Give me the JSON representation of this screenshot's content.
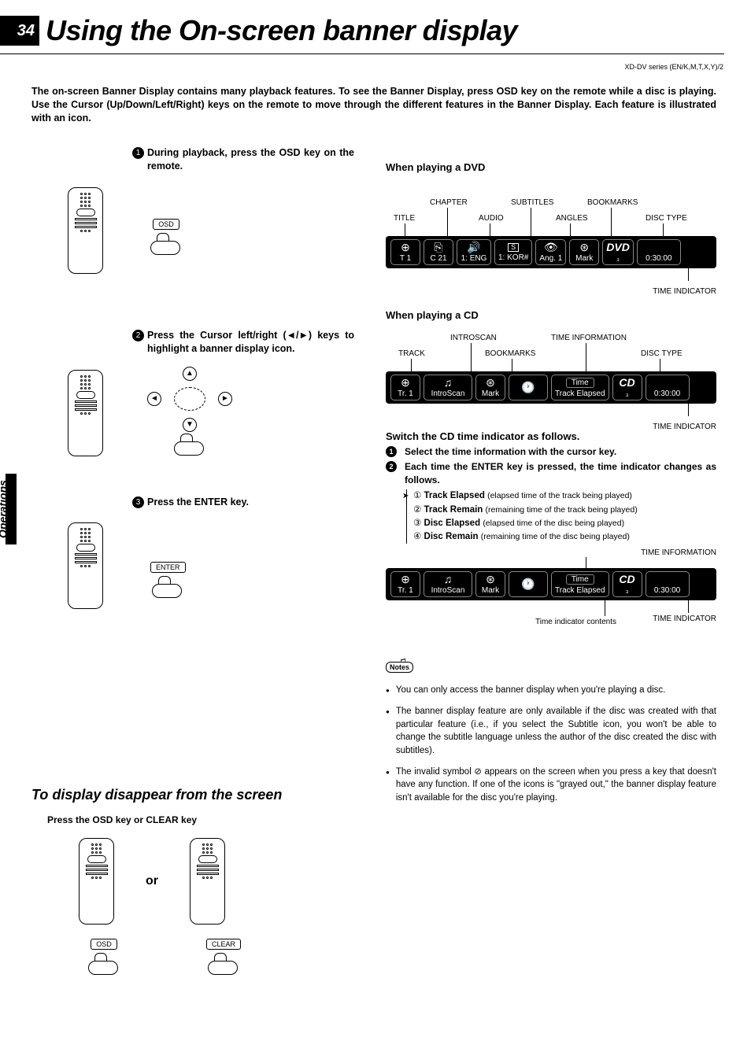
{
  "page_number": "34",
  "title": "Using the On-screen banner display",
  "series_code": "XD-DV series (EN/K,M,T,X,Y)/2",
  "intro": "The on-screen Banner Display contains many playback features. To see the Banner Display, press OSD key on the remote while a disc is playing. Use the Cursor (Up/Down/Left/Right) keys on the remote to move through the different features in the Banner Display. Each feature is illustrated with an icon.",
  "side_tab": "Operations",
  "steps": {
    "s1": "During playback, press  the OSD key on the remote.",
    "s2": "Press the Cursor left/right (◄/►) keys to highlight a banner display icon.",
    "s3": "Press the ENTER key.",
    "osd_label": "OSD",
    "enter_label": "ENTER"
  },
  "disappear": {
    "heading": "To display disappear from the screen",
    "instr": "Press the OSD key or CLEAR key",
    "or": "or",
    "osd_label": "OSD",
    "clear_label": "CLEAR"
  },
  "dvd": {
    "heading": "When playing a DVD",
    "labels": {
      "title": "TITLE",
      "chapter": "CHAPTER",
      "audio": "AUDIO",
      "subtitles": "SUBTITLES",
      "angles": "ANGLES",
      "bookmarks": "BOOKMARKS",
      "disc_type": "DISC TYPE",
      "time_indicator": "TIME INDICATOR"
    },
    "banner": {
      "title_val": "T  1",
      "chapter_val": "C  21",
      "audio_val": "1: ENG",
      "subtitle_val": "1: KOR#",
      "angle_val": "Ang. 1",
      "bookmark_val": "Mark",
      "disc_type_top": "DVD",
      "disc_type_bot": "₃",
      "time": "0:30:00"
    },
    "icons": {
      "title": "⊕",
      "chapter": "⎘",
      "audio": "🔊",
      "subtitle": "S",
      "angle": "👁",
      "bookmark": "⊛"
    }
  },
  "cd": {
    "heading": "When playing a CD",
    "labels": {
      "track": "TRACK",
      "introscan": "INTROSCAN",
      "bookmarks": "BOOKMARKS",
      "time_info": "TIME INFORMATION",
      "disc_type": "DISC TYPE",
      "time_indicator": "TIME INDICATOR"
    },
    "banner": {
      "track_val": "Tr.  1",
      "introscan_val": "IntroScan",
      "bookmark_val": "Mark",
      "timeinfo_top": "Time",
      "timeinfo_bot": "Track Elapsed",
      "disc_type_top": "CD",
      "disc_type_bot": "₃",
      "time": "0:30:00"
    },
    "icons": {
      "track": "⊕",
      "introscan": "♫",
      "bookmark": "⊛",
      "clock": "🕐"
    },
    "switch_heading": "Switch the CD time indicator as follows.",
    "sel": "Select the time information with the cursor key.",
    "each": "Each time the ENTER key is pressed, the time indicator changes as follows.",
    "modes": [
      {
        "n": "①",
        "b": "Track Elapsed",
        "d": "(elapsed time of the track being played)"
      },
      {
        "n": "②",
        "b": "Track Remain",
        "d": "(remaining time of the track being played)"
      },
      {
        "n": "③",
        "b": "Disc Elapsed",
        "d": "(elapsed time of the disc being played)"
      },
      {
        "n": "④",
        "b": "Disc Remain",
        "d": "(remaining time of the disc being played)"
      }
    ],
    "time_info_lbl": "TIME INFORMATION",
    "time_ind_contents": "Time indicator contents"
  },
  "notes": {
    "heading": "Notes",
    "items": [
      "You can only access the banner display when you're playing a disc.",
      "The banner display feature are only available if the disc was created with that particular feature (i.e., if you select the Subtitle icon, you won't be able to change the subtitle language unless the author of the disc created the disc with subtitles).",
      "The invalid symbol ⊘ appears on the screen when you press a key that doesn't have any function. If one of the icons is \"grayed out,\" the banner display feature isn't available for the disc you're playing."
    ]
  },
  "colors": {
    "banner_bg": "#000000",
    "banner_border": "#707070",
    "text": "#000000",
    "white": "#ffffff"
  }
}
